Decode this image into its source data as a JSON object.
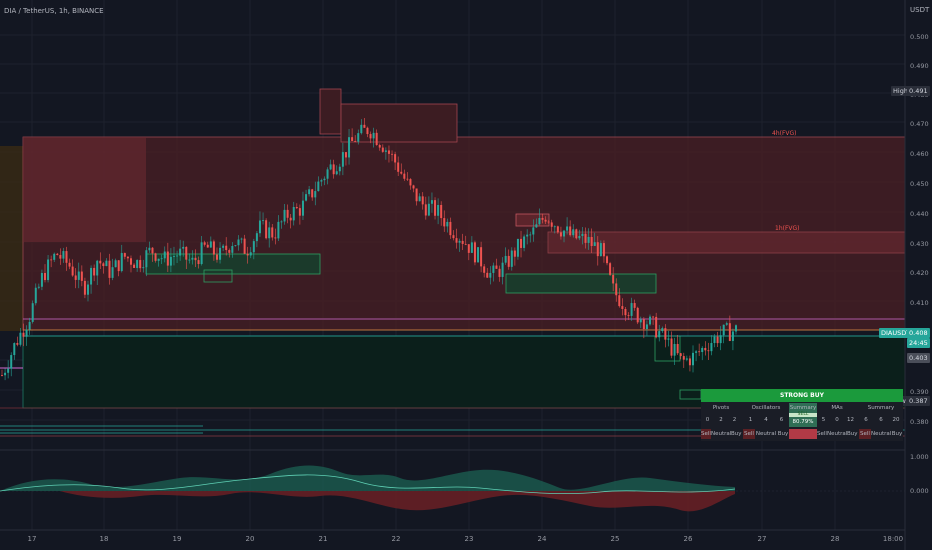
{
  "header": {
    "symbol_line": "DIA / TetherUS, 1h, BINANCE",
    "currency": "USDT"
  },
  "price_axis": {
    "ticks": [
      "0.500",
      "0.490",
      "0.480",
      "0.470",
      "0.460",
      "0.450",
      "0.440",
      "0.430",
      "0.420",
      "0.410",
      "0.390",
      "0.380"
    ],
    "high_label": "High",
    "high_value": "0.491",
    "symbol_tag": "DIAUSDT",
    "current_price": "0.408",
    "countdown": "24:45",
    "level_value": "0.403",
    "low_label": "Low",
    "low_value": "0.387"
  },
  "indicator_axis": {
    "ticks": [
      "1.000",
      "0.000"
    ]
  },
  "time_axis": {
    "ticks": [
      "17",
      "18",
      "19",
      "20",
      "21",
      "22",
      "23",
      "24",
      "25",
      "26",
      "27",
      "28",
      "18:00"
    ]
  },
  "zone_labels": {
    "htf": "4h(FVG)",
    "ltf": "1h(FVG)"
  },
  "summary_panel": {
    "banner": "STRONG BUY",
    "headers": [
      "Pivots",
      "Oscillators",
      "Summary",
      "MAs",
      "Summary"
    ],
    "pivots_counts": [
      "0",
      "2",
      "2"
    ],
    "osc_counts": [
      "1",
      "4",
      "6"
    ],
    "mas_counts": [
      "5",
      "0",
      "12"
    ],
    "summary_counts": [
      "6",
      "6",
      "20"
    ],
    "center_top": "SELL",
    "center_value": "80.79%",
    "labels": [
      "Sell",
      "Neutral",
      "Buy"
    ]
  },
  "colors": {
    "up": "#26a69a",
    "down": "#ef5350",
    "bg": "#131722",
    "zone_red": "#5d2227",
    "zone_green": "#0f2a22",
    "buy": "#1b9a3c"
  },
  "chart_data": {
    "type": "candlestick",
    "ylim": [
      0.376,
      0.504
    ],
    "series_close_path": [
      0.394,
      0.404,
      0.412,
      0.425,
      0.432,
      0.428,
      0.421,
      0.43,
      0.426,
      0.431,
      0.429,
      0.433,
      0.43,
      0.432,
      0.429,
      0.434,
      0.431,
      0.436,
      0.433,
      0.44,
      0.438,
      0.444,
      0.446,
      0.452,
      0.458,
      0.462,
      0.468,
      0.471,
      0.466,
      0.46,
      0.452,
      0.447,
      0.445,
      0.44,
      0.436,
      0.431,
      0.425,
      0.428,
      0.434,
      0.438,
      0.444,
      0.44,
      0.437,
      0.436,
      0.433,
      0.42,
      0.415,
      0.412,
      0.409,
      0.404,
      0.398,
      0.4,
      0.404,
      0.407,
      0.408
    ]
  }
}
